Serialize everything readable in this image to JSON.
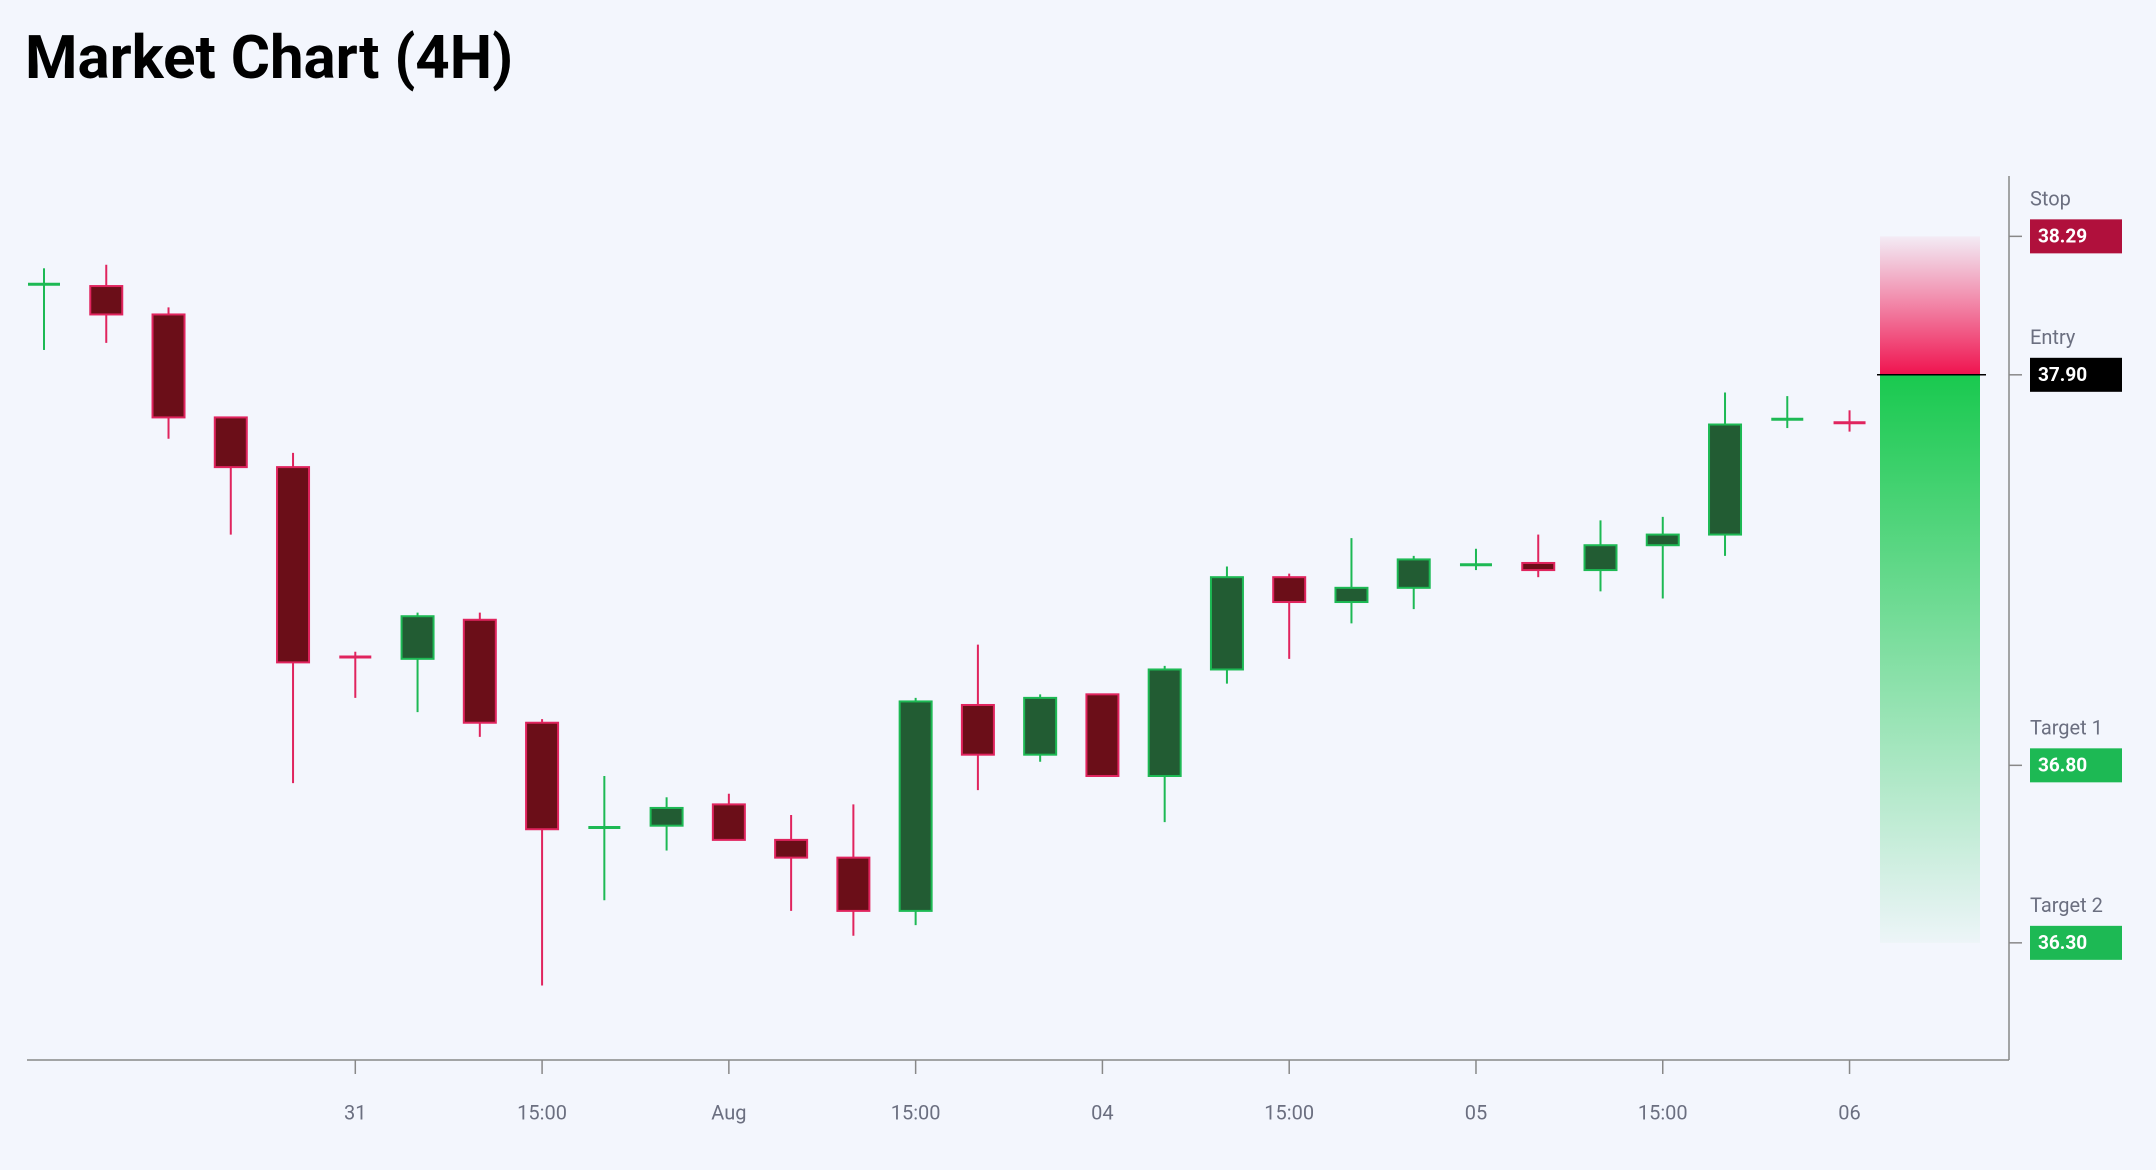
{
  "chart_data": {
    "type": "candlestick",
    "title": "Market Chart (4H)",
    "categories": [
      null,
      null,
      null,
      null,
      null,
      "31",
      null,
      null,
      "15:00",
      null,
      null,
      "Aug",
      null,
      null,
      "15:00",
      null,
      null,
      "04",
      null,
      null,
      "15:00",
      null,
      null,
      "05",
      null,
      null,
      "15:00",
      null,
      null,
      "06"
    ],
    "open": [
      38.15,
      38.15,
      38.07,
      37.78,
      37.64,
      37.11,
      37.1,
      37.21,
      36.92,
      36.62,
      36.63,
      36.69,
      36.59,
      36.54,
      36.39,
      36.97,
      36.83,
      37.0,
      36.77,
      37.07,
      37.33,
      37.26,
      37.3,
      37.36,
      37.37,
      37.35,
      37.42,
      37.45,
      37.77,
      37.77
    ],
    "high": [
      38.2,
      38.21,
      38.09,
      37.78,
      37.68,
      37.12,
      37.23,
      37.23,
      36.93,
      36.77,
      36.71,
      36.72,
      36.66,
      36.69,
      36.99,
      37.14,
      37.0,
      37.0,
      37.08,
      37.36,
      37.34,
      37.44,
      37.39,
      37.41,
      37.45,
      37.49,
      37.5,
      37.85,
      37.84,
      37.8
    ],
    "low": [
      37.97,
      37.99,
      37.72,
      37.45,
      36.75,
      36.99,
      36.95,
      36.88,
      36.18,
      36.42,
      36.56,
      36.59,
      36.39,
      36.32,
      36.35,
      36.73,
      36.81,
      36.77,
      36.64,
      37.03,
      37.1,
      37.2,
      37.24,
      37.35,
      37.33,
      37.29,
      37.27,
      37.39,
      37.75,
      37.74
    ],
    "close": [
      38.16,
      38.07,
      37.78,
      37.64,
      37.09,
      37.1,
      37.22,
      36.92,
      36.62,
      36.63,
      36.68,
      36.59,
      36.54,
      36.39,
      36.98,
      36.83,
      36.99,
      36.77,
      37.07,
      37.33,
      37.26,
      37.3,
      37.38,
      37.37,
      37.35,
      37.42,
      37.45,
      37.76,
      37.78,
      37.76
    ],
    "up_color": "#1db954",
    "down_color": "#e0245e",
    "levels": {
      "names": [
        "Stop",
        "Entry",
        "Target 1",
        "Target 2"
      ],
      "values": [
        38.29,
        37.9,
        36.8,
        36.3
      ],
      "value_labels": [
        "38.29",
        "37.90",
        "36.80",
        "36.30"
      ],
      "colors": [
        "#b0103c",
        "#000000",
        "#1db954",
        "#1db954"
      ]
    },
    "ylim": [
      35.97,
      38.46
    ]
  }
}
